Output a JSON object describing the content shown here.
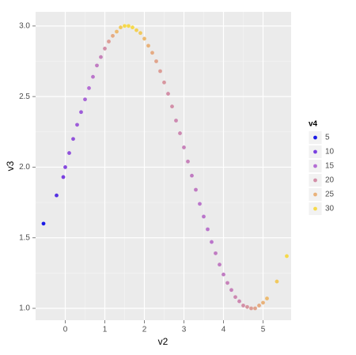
{
  "chart_data": {
    "type": "scatter",
    "x_label": "v2",
    "y_label": "v3",
    "x": [
      -0.55,
      -0.22,
      -0.05,
      0.0,
      0.1,
      0.2,
      0.3,
      0.4,
      0.5,
      0.6,
      0.7,
      0.8,
      0.9,
      1.0,
      1.1,
      1.2,
      1.3,
      1.4,
      1.5,
      1.6,
      1.7,
      1.8,
      1.9,
      2.0,
      2.1,
      2.2,
      2.3,
      2.4,
      2.5,
      2.6,
      2.7,
      2.8,
      2.9,
      3.0,
      3.1,
      3.2,
      3.3,
      3.4,
      3.5,
      3.6,
      3.7,
      3.8,
      3.9,
      4.0,
      4.1,
      4.2,
      4.3,
      4.4,
      4.5,
      4.6,
      4.7,
      4.8,
      4.9,
      5.0,
      5.1,
      5.35,
      5.6
    ],
    "y": [
      1.6,
      1.8,
      1.93,
      2.0,
      2.1,
      2.2,
      2.3,
      2.39,
      2.48,
      2.56,
      2.64,
      2.72,
      2.78,
      2.84,
      2.89,
      2.93,
      2.96,
      2.99,
      3.0,
      3.0,
      2.99,
      2.97,
      2.95,
      2.91,
      2.86,
      2.81,
      2.75,
      2.68,
      2.6,
      2.52,
      2.43,
      2.33,
      2.24,
      2.14,
      2.04,
      1.94,
      1.84,
      1.74,
      1.65,
      1.56,
      1.47,
      1.39,
      1.31,
      1.24,
      1.18,
      1.13,
      1.08,
      1.05,
      1.02,
      1.01,
      1.0,
      1.0,
      1.02,
      1.04,
      1.07,
      1.19,
      1.37
    ],
    "color_values": [
      5,
      8,
      10,
      11,
      12,
      12,
      13,
      13,
      14,
      15,
      16,
      17,
      18,
      20,
      22,
      24,
      26,
      28,
      30,
      30,
      30,
      29,
      28,
      26,
      25,
      24,
      23,
      22,
      21,
      20,
      20,
      19,
      19,
      18,
      18,
      17,
      17,
      16,
      16,
      16,
      16,
      17,
      17,
      17,
      18,
      18,
      19,
      19,
      20,
      21,
      22,
      23,
      24,
      25,
      26,
      28,
      30
    ],
    "xlim": [
      -0.75,
      5.71
    ],
    "ylim": [
      0.916,
      3.1
    ],
    "xticks": [
      0,
      1,
      2,
      3,
      4,
      5
    ],
    "yticks": [
      {
        "value": 1.0,
        "label": "1.0"
      },
      {
        "value": 1.5,
        "label": "1.5"
      },
      {
        "value": 2.0,
        "label": "2.0"
      },
      {
        "value": 2.5,
        "label": "2.5"
      },
      {
        "value": 3.0,
        "label": "3.0"
      }
    ],
    "grid": true,
    "legend": {
      "title": "v4",
      "breaks": [
        5,
        10,
        15,
        20,
        25,
        30
      ],
      "colors": [
        "#1a1ae6",
        "#7a40e0",
        "#b46ed4",
        "#d38fa8",
        "#e9b27a",
        "#f6d94a"
      ]
    }
  }
}
